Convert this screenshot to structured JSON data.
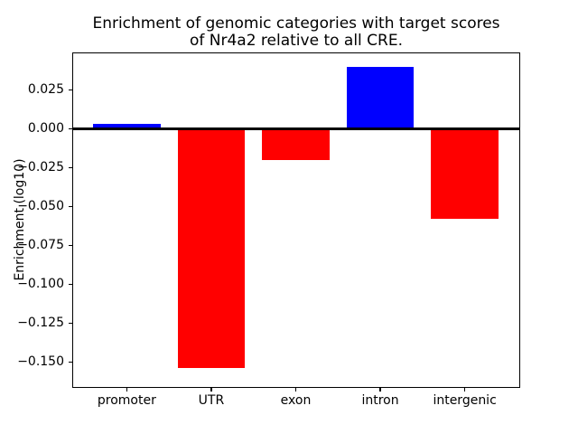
{
  "figure": {
    "title_line1": "Enrichment of genomic categories with target scores",
    "title_line2": "of Nr4a2 relative to all CRE.",
    "ylabel": "Enrichment (log10)"
  },
  "chart_data": {
    "type": "bar",
    "title": "Enrichment of genomic categories with target scores of Nr4a2 relative to all CRE.",
    "ylabel": "Enrichment (log10)",
    "xlabel": "",
    "categories": [
      "promoter",
      "UTR",
      "exon",
      "intron",
      "intergenic"
    ],
    "values": [
      0.003,
      -0.154,
      -0.02,
      0.04,
      -0.058
    ],
    "bar_colors": [
      "#0000ff",
      "#ff0000",
      "#ff0000",
      "#0000ff",
      "#ff0000"
    ],
    "positive_color": "#0000ff",
    "negative_color": "#ff0000",
    "yticks": [
      0.025,
      0.0,
      -0.025,
      -0.05,
      -0.075,
      -0.1,
      -0.125,
      -0.15
    ],
    "ytick_decimals": 3,
    "ylim": [
      -0.1657,
      0.0488
    ],
    "xlim": [
      -0.64,
      4.64
    ],
    "bar_width": 0.8,
    "zero_line_value": 0,
    "grid": false,
    "legend": null,
    "axis_color": "#000000",
    "background_color": "#ffffff"
  }
}
